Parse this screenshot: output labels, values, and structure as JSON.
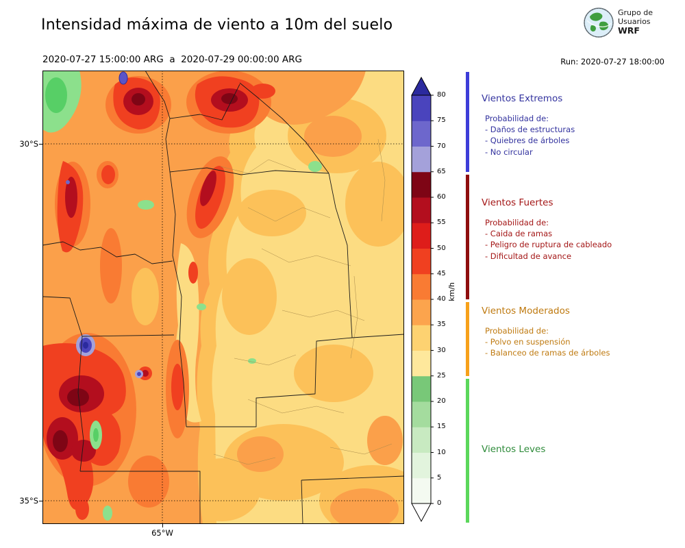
{
  "header": {
    "title": "Intensidad máxima de viento a 10m del suelo",
    "period": "2020-07-27 15:00:00 ARG  a  2020-07-29 00:00:00 ARG",
    "run": "Run: 2020-07-27 18:00:00",
    "logo": {
      "line1": "Grupo de",
      "line2": "Usuarios",
      "line3": "WRF"
    }
  },
  "map": {
    "lat_labels": [
      "30°S",
      "35°S"
    ],
    "lon_labels": [
      "65°W"
    ]
  },
  "colorbar": {
    "unit": "km/h",
    "ticks": [
      0,
      5,
      10,
      15,
      20,
      25,
      30,
      35,
      40,
      45,
      50,
      55,
      60,
      65,
      70,
      75,
      80
    ],
    "segment_colors": [
      "#f4faf1",
      "#e2f4dd",
      "#c8eac1",
      "#a4dc9e",
      "#78c878",
      "#fee89c",
      "#fdd271",
      "#fca44d",
      "#f97b33",
      "#f04020",
      "#de1d1a",
      "#b30e1e",
      "#7e0515",
      "#a4a1da",
      "#6d67cc",
      "#4a44bd"
    ],
    "under_color": "#ffffff",
    "over_color": "#2b2a9e"
  },
  "legend": {
    "sections": [
      {
        "title": "Vientos Extremos",
        "text_color": "#32329e",
        "bar_color": "#3d3dd8",
        "intro": "Probabilidad de:",
        "items": [
          "- Daños de estructuras",
          "- Quiebres de árboles",
          "- No circular"
        ]
      },
      {
        "title": "Vientos Fuertes",
        "text_color": "#a31515",
        "bar_color": "#8f0e0e",
        "intro": "Probabilidad de:",
        "items": [
          "- Caida de ramas",
          "- Peligro de ruptura de cableado",
          "- Dificultad de avance"
        ]
      },
      {
        "title": "Vientos Moderados",
        "text_color": "#bf7a10",
        "bar_color": "#f7a11a",
        "intro": "Probabilidad de:",
        "items": [
          "- Polvo en suspensión",
          "- Balanceo de ramas de árboles"
        ]
      },
      {
        "title": "Vientos Leves",
        "text_color": "#2e8b3a",
        "bar_color": "#5bd75b",
        "intro": "",
        "items": []
      }
    ]
  },
  "chart_data": {
    "type": "heatmap",
    "title": "Intensidad máxima de viento a 10m del suelo",
    "units": "km/h",
    "period_start": "2020-07-27 15:00:00 ARG",
    "period_end": "2020-07-29 00:00:00 ARG",
    "model_run": "2020-07-27 18:00:00",
    "colorbar_levels": [
      0,
      5,
      10,
      15,
      20,
      25,
      30,
      35,
      40,
      45,
      50,
      55,
      60,
      65,
      70,
      75,
      80
    ],
    "colorbar_colors": [
      "#f4faf1",
      "#e2f4dd",
      "#c8eac1",
      "#a4dc9e",
      "#78c878",
      "#fee89c",
      "#fdd271",
      "#fca44d",
      "#f97b33",
      "#f04020",
      "#de1d1a",
      "#b30e1e",
      "#7e0515",
      "#a4a1da",
      "#6d67cc",
      "#4a44bd"
    ],
    "categories": [
      {
        "label": "Vientos Leves",
        "range_kmh": [
          0,
          25
        ]
      },
      {
        "label": "Vientos Moderados",
        "range_kmh": [
          25,
          40
        ]
      },
      {
        "label": "Vientos Fuertes",
        "range_kmh": [
          40,
          65
        ]
      },
      {
        "label": "Vientos Extremos",
        "range_kmh": [
          65,
          85
        ]
      }
    ],
    "grid_labels": {
      "lat": [
        "30°S",
        "35°S"
      ],
      "lon": [
        "65°W"
      ]
    },
    "legend_position": "right",
    "grid": "dotted"
  }
}
